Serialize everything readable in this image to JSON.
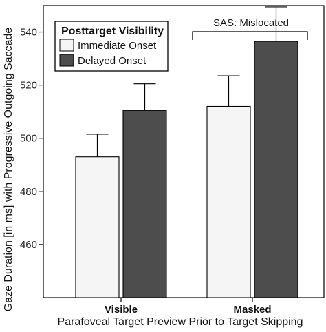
{
  "chart_data": {
    "type": "bar",
    "title": "",
    "xlabel": "Parafoveal Target Preview Prior to Target Skipping",
    "ylabel": "Gaze Duration [in ms] with Progressive Outgoing Saccade",
    "categories": [
      "Visible",
      "Masked"
    ],
    "ylim": [
      440,
      550
    ],
    "yticks": [
      460,
      480,
      500,
      520,
      540
    ],
    "grid": false,
    "legend": {
      "title": "Posttarget Visibility",
      "placement": "top-left"
    },
    "series": [
      {
        "name": "Immediate Onset",
        "color": "#f5f5f5",
        "values": [
          493,
          512
        ],
        "errors": [
          8.5,
          11.5
        ]
      },
      {
        "name": "Delayed Onset",
        "color": "#4d4d4d",
        "values": [
          510.5,
          536.5
        ],
        "errors": [
          10,
          13
        ]
      }
    ],
    "annotations": [
      {
        "text": "SAS: Mislocated"
      }
    ]
  }
}
